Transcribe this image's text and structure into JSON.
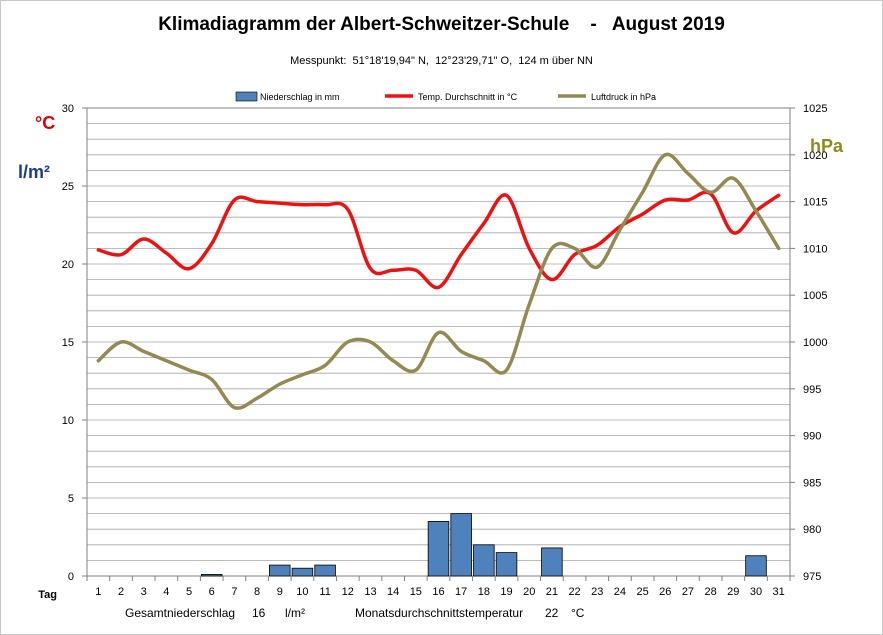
{
  "title": "Klimadiagramm der Albert-Schweitzer-Schule    -   August 2019",
  "subtitle": "Messpunkt:  51°18'19,94\" N,  12°23'29,71\" O,  124 m über NN",
  "units": {
    "temp": "°C",
    "rain": "l/m²",
    "pressure": "hPa"
  },
  "footer": {
    "rain_label": "Gesamtniederschlag",
    "rain_value": "16",
    "rain_unit": "l/m²",
    "temp_label": "Monatsdurchschnittstemperatur",
    "temp_value": "22",
    "temp_unit": "°C"
  },
  "chart_data": {
    "type": "bar",
    "title": "Klimadiagramm der Albert-Schweitzer-Schule    -   August 2019",
    "xlabel": "Tag",
    "categories": [
      "1",
      "2",
      "3",
      "4",
      "5",
      "6",
      "7",
      "8",
      "9",
      "10",
      "11",
      "12",
      "13",
      "14",
      "15",
      "16",
      "17",
      "18",
      "19",
      "20",
      "21",
      "22",
      "23",
      "24",
      "25",
      "26",
      "27",
      "28",
      "29",
      "30",
      "31"
    ],
    "left_axis": {
      "min": 0,
      "max": 30,
      "ticks": [
        0,
        5,
        10,
        15,
        20,
        25,
        30
      ]
    },
    "right_axis": {
      "min": 975,
      "max": 1025,
      "ticks": [
        975,
        980,
        985,
        990,
        995,
        1000,
        1005,
        1010,
        1015,
        1020,
        1025
      ]
    },
    "grid": true,
    "legend_position": "top",
    "series": [
      {
        "name": "Niederschlag in mm",
        "type": "bar",
        "axis": "left",
        "color": "#4f81bd",
        "values": [
          0,
          0,
          0,
          0,
          0,
          0.1,
          0,
          0,
          0.7,
          0.5,
          0.7,
          0,
          0,
          0,
          0,
          3.5,
          4.0,
          2.0,
          1.5,
          0,
          1.8,
          0,
          0,
          0,
          0,
          0,
          0,
          0,
          0,
          1.3,
          0
        ]
      },
      {
        "name": "Temp. Durchschnitt in °C",
        "type": "line",
        "axis": "left",
        "color": "#ee1111",
        "values": [
          20.9,
          20.6,
          21.6,
          20.7,
          19.7,
          21.3,
          24.1,
          24.0,
          23.9,
          23.8,
          23.8,
          23.5,
          19.7,
          19.6,
          19.6,
          18.5,
          20.6,
          22.6,
          24.4,
          21.0,
          19.0,
          20.6,
          21.2,
          22.4,
          23.2,
          24.1,
          24.1,
          24.5,
          22.0,
          23.4,
          24.4
        ]
      },
      {
        "name": "Luftdruck in hPa",
        "type": "line",
        "axis": "right",
        "color": "#938953",
        "values": [
          998,
          1000,
          999,
          998,
          997,
          996,
          993,
          994,
          995.5,
          996.5,
          997.5,
          1000,
          1000,
          998,
          997,
          1001,
          999,
          998,
          997,
          1004,
          1010,
          1010,
          1008,
          1012,
          1016,
          1020,
          1018,
          1016,
          1017.5,
          1014,
          1010
        ]
      }
    ]
  }
}
